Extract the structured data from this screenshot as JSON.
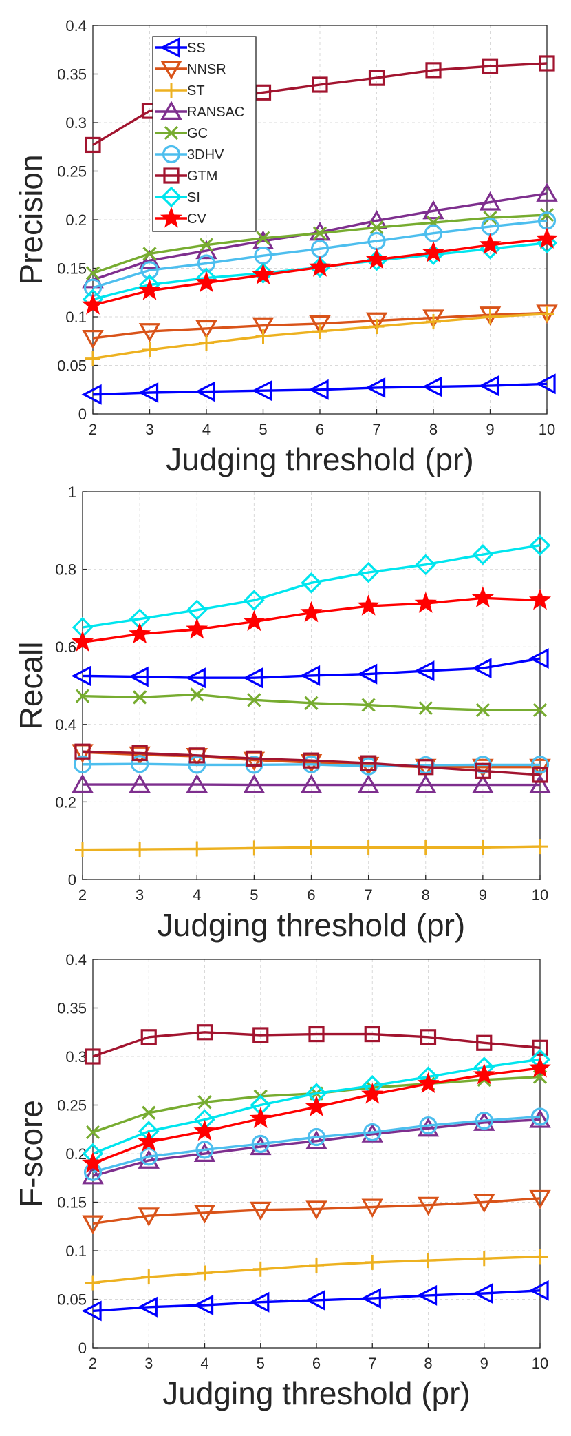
{
  "chart_data": [
    {
      "type": "line",
      "ylabel": "Precision",
      "xlabel": "Judging threshold (pr)",
      "x": [
        2,
        3,
        4,
        5,
        6,
        7,
        8,
        9,
        10
      ],
      "xlim": [
        2,
        10
      ],
      "ylim": [
        0,
        0.4
      ],
      "xticks": [
        "2",
        "3",
        "4",
        "5",
        "6",
        "7",
        "8",
        "9",
        "10"
      ],
      "yticks": [
        "0",
        "0.05",
        "0.1",
        "0.15",
        "0.2",
        "0.25",
        "0.3",
        "0.35",
        "0.4"
      ],
      "grid": true,
      "legend": {
        "placement": "top-left",
        "entries": [
          "SS",
          "NNSR",
          "ST",
          "RANSAC",
          "GC",
          "3DHV",
          "GTM",
          "SI",
          "CV"
        ]
      },
      "series": [
        {
          "name": "SS",
          "values": [
            0.02,
            0.022,
            0.023,
            0.024,
            0.025,
            0.027,
            0.028,
            0.029,
            0.031
          ]
        },
        {
          "name": "NNSR",
          "values": [
            0.078,
            0.085,
            0.088,
            0.091,
            0.093,
            0.096,
            0.099,
            0.102,
            0.104
          ]
        },
        {
          "name": "ST",
          "values": [
            0.057,
            0.066,
            0.073,
            0.08,
            0.085,
            0.09,
            0.095,
            0.1,
            0.103
          ]
        },
        {
          "name": "RANSAC",
          "values": [
            0.138,
            0.158,
            0.168,
            0.178,
            0.187,
            0.199,
            0.209,
            0.218,
            0.227
          ]
        },
        {
          "name": "GC",
          "values": [
            0.145,
            0.165,
            0.174,
            0.181,
            0.186,
            0.192,
            0.197,
            0.202,
            0.205
          ]
        },
        {
          "name": "3DHV",
          "values": [
            0.13,
            0.148,
            0.155,
            0.163,
            0.17,
            0.178,
            0.186,
            0.193,
            0.199
          ]
        },
        {
          "name": "GTM",
          "values": [
            0.277,
            0.312,
            0.323,
            0.331,
            0.339,
            0.346,
            0.354,
            0.358,
            0.361
          ]
        },
        {
          "name": "SI",
          "values": [
            0.118,
            0.133,
            0.14,
            0.145,
            0.151,
            0.158,
            0.164,
            0.17,
            0.176
          ]
        },
        {
          "name": "CV",
          "values": [
            0.112,
            0.127,
            0.135,
            0.143,
            0.151,
            0.159,
            0.166,
            0.174,
            0.18
          ]
        }
      ]
    },
    {
      "type": "line",
      "ylabel": "Recall",
      "xlabel": "Judging threshold (pr)",
      "x": [
        2,
        3,
        4,
        5,
        6,
        7,
        8,
        9,
        10
      ],
      "xlim": [
        2,
        10
      ],
      "ylim": [
        0,
        1
      ],
      "xticks": [
        "2",
        "3",
        "4",
        "5",
        "6",
        "7",
        "8",
        "9",
        "10"
      ],
      "yticks": [
        "0",
        "0.2",
        "0.4",
        "0.6",
        "0.8",
        "1"
      ],
      "grid": true,
      "series": [
        {
          "name": "SS",
          "values": [
            0.525,
            0.523,
            0.52,
            0.52,
            0.526,
            0.53,
            0.538,
            0.545,
            0.57
          ]
        },
        {
          "name": "NNSR",
          "values": [
            0.328,
            0.322,
            0.318,
            0.308,
            0.302,
            0.295,
            0.29,
            0.29,
            0.29
          ]
        },
        {
          "name": "ST",
          "values": [
            0.077,
            0.078,
            0.079,
            0.081,
            0.083,
            0.083,
            0.083,
            0.083,
            0.085
          ]
        },
        {
          "name": "RANSAC",
          "values": [
            0.245,
            0.245,
            0.245,
            0.244,
            0.244,
            0.244,
            0.244,
            0.244,
            0.244
          ]
        },
        {
          "name": "GC",
          "values": [
            0.473,
            0.47,
            0.477,
            0.463,
            0.455,
            0.45,
            0.442,
            0.437,
            0.437
          ]
        },
        {
          "name": "3DHV",
          "values": [
            0.297,
            0.298,
            0.296,
            0.296,
            0.297,
            0.292,
            0.295,
            0.296,
            0.296
          ]
        },
        {
          "name": "GTM",
          "values": [
            0.33,
            0.326,
            0.32,
            0.312,
            0.307,
            0.3,
            0.29,
            0.28,
            0.27
          ]
        },
        {
          "name": "SI",
          "values": [
            0.65,
            0.672,
            0.695,
            0.72,
            0.765,
            0.792,
            0.812,
            0.838,
            0.862
          ]
        },
        {
          "name": "CV",
          "values": [
            0.612,
            0.633,
            0.645,
            0.665,
            0.688,
            0.705,
            0.712,
            0.726,
            0.72
          ]
        }
      ]
    },
    {
      "type": "line",
      "ylabel": "F-score",
      "xlabel": "Judging threshold (pr)",
      "x": [
        2,
        3,
        4,
        5,
        6,
        7,
        8,
        9,
        10
      ],
      "xlim": [
        2,
        10
      ],
      "ylim": [
        0,
        0.4
      ],
      "xticks": [
        "2",
        "3",
        "4",
        "5",
        "6",
        "7",
        "8",
        "9",
        "10"
      ],
      "yticks": [
        "0",
        "0.05",
        "0.1",
        "0.15",
        "0.2",
        "0.25",
        "0.3",
        "0.35",
        "0.4"
      ],
      "grid": true,
      "series": [
        {
          "name": "SS",
          "values": [
            0.038,
            0.042,
            0.044,
            0.047,
            0.049,
            0.051,
            0.054,
            0.056,
            0.059
          ]
        },
        {
          "name": "NNSR",
          "values": [
            0.128,
            0.136,
            0.139,
            0.142,
            0.143,
            0.145,
            0.147,
            0.15,
            0.154
          ]
        },
        {
          "name": "ST",
          "values": [
            0.067,
            0.073,
            0.077,
            0.081,
            0.085,
            0.088,
            0.09,
            0.092,
            0.094
          ]
        },
        {
          "name": "RANSAC",
          "values": [
            0.177,
            0.193,
            0.2,
            0.207,
            0.213,
            0.22,
            0.226,
            0.232,
            0.235
          ]
        },
        {
          "name": "GC",
          "values": [
            0.222,
            0.242,
            0.253,
            0.259,
            0.262,
            0.268,
            0.272,
            0.276,
            0.279
          ]
        },
        {
          "name": "3DHV",
          "values": [
            0.181,
            0.197,
            0.204,
            0.21,
            0.217,
            0.222,
            0.229,
            0.234,
            0.238
          ]
        },
        {
          "name": "GTM",
          "values": [
            0.3,
            0.32,
            0.325,
            0.322,
            0.323,
            0.323,
            0.32,
            0.314,
            0.309
          ]
        },
        {
          "name": "SI",
          "values": [
            0.2,
            0.223,
            0.235,
            0.25,
            0.262,
            0.27,
            0.279,
            0.289,
            0.297
          ]
        },
        {
          "name": "CV",
          "values": [
            0.19,
            0.212,
            0.223,
            0.236,
            0.248,
            0.261,
            0.272,
            0.281,
            0.288
          ]
        }
      ]
    }
  ],
  "styles": {
    "SS": {
      "color": "#0000ff",
      "marker": "triangle-left"
    },
    "NNSR": {
      "color": "#d95319",
      "marker": "triangle-down"
    },
    "ST": {
      "color": "#edb120",
      "marker": "plus"
    },
    "RANSAC": {
      "color": "#7e2f8e",
      "marker": "triangle-up"
    },
    "GC": {
      "color": "#77ac30",
      "marker": "x"
    },
    "3DHV": {
      "color": "#4dbeee",
      "marker": "circle"
    },
    "GTM": {
      "color": "#a2142f",
      "marker": "square"
    },
    "SI": {
      "color": "#00e5ee",
      "marker": "diamond"
    },
    "CV": {
      "color": "#ff0000",
      "marker": "star"
    }
  }
}
